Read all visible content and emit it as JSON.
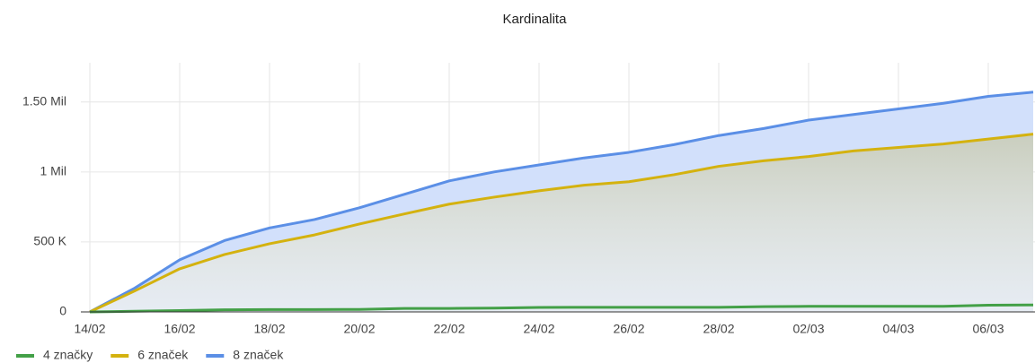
{
  "chart_data": {
    "type": "area",
    "title": "Kardinalita",
    "categories": [
      "14/02",
      null,
      "16/02",
      null,
      "18/02",
      null,
      "20/02",
      null,
      "22/02",
      null,
      "24/02",
      null,
      "26/02",
      null,
      "28/02",
      null,
      "02/03",
      null,
      "04/03",
      null,
      "06/03",
      null
    ],
    "series": [
      {
        "name": "8 značek",
        "color": "#5b8fe6",
        "values": [
          0,
          170000,
          372000,
          510000,
          600000,
          660000,
          744000,
          840000,
          936000,
          1000000,
          1050000,
          1100000,
          1140000,
          1195000,
          1260000,
          1310000,
          1370000,
          1410000,
          1450000,
          1490000,
          1540000,
          1570000
        ]
      },
      {
        "name": "6 značek",
        "color": "#d4b20f",
        "values": [
          0,
          150000,
          308000,
          410000,
          487000,
          550000,
          628000,
          700000,
          770000,
          820000,
          865000,
          905000,
          930000,
          980000,
          1040000,
          1080000,
          1110000,
          1150000,
          1175000,
          1200000,
          1235000,
          1270000
        ]
      },
      {
        "name": "4 značky",
        "color": "#43a047",
        "values": [
          0,
          5000,
          10000,
          15000,
          17000,
          17000,
          18000,
          25000,
          25000,
          27000,
          32000,
          33000,
          33000,
          33000,
          33000,
          38000,
          40000,
          40000,
          40000,
          40000,
          48000,
          50000
        ]
      }
    ],
    "ylim": [
      0,
      1780000
    ],
    "yticks": [
      0,
      {
        "value": 500000,
        "label": "500 K"
      },
      {
        "value": 1000000,
        "label": "1 Mil"
      },
      {
        "value": 1500000,
        "label": "1.50 Mil"
      }
    ],
    "grid": true,
    "legend": "bottom-left"
  }
}
